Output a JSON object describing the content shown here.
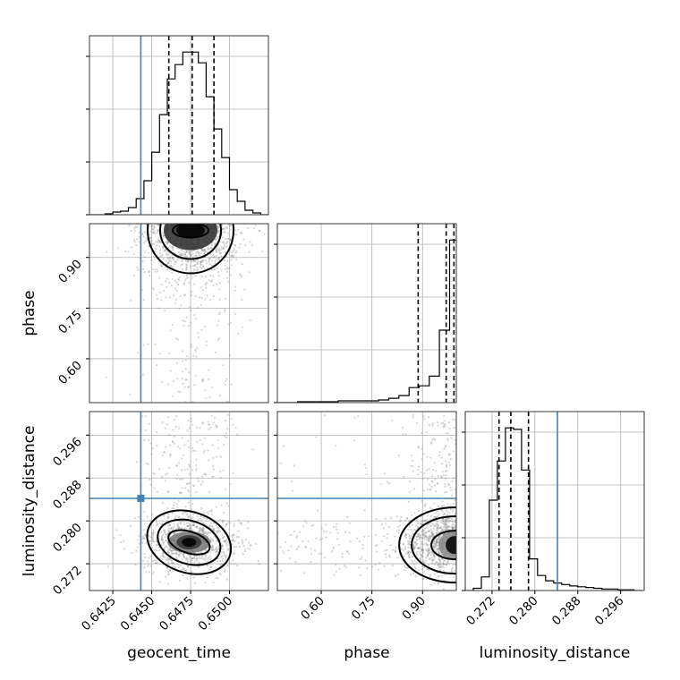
{
  "chart_data": {
    "type": "corner",
    "parameters": [
      "geocent_time",
      "phase",
      "luminosity_distance"
    ],
    "axis_labels": {
      "geocent_time": "geocent_time",
      "phase": "phase",
      "luminosity_distance": "luminosity_distance"
    },
    "ranges": {
      "geocent_time": [
        0.641,
        0.6525
      ],
      "phase": [
        0.47,
        1.0
      ],
      "luminosity_distance": [
        0.267,
        0.3004
      ]
    },
    "ticks": {
      "geocent_time": [
        "0.6425",
        "0.6450",
        "0.6475",
        "0.6500"
      ],
      "phase": [
        "0.60",
        "0.75",
        "0.90"
      ],
      "luminosity_distance": [
        "0.272",
        "0.280",
        "0.288",
        "0.296"
      ]
    },
    "truths": {
      "geocent_time": 0.6443,
      "luminosity_distance": 0.2842
    },
    "quantiles": {
      "geocent_time": [
        0.6461,
        0.6476,
        0.649
      ],
      "phase": [
        0.887,
        0.97,
        0.993
      ],
      "luminosity_distance": [
        0.2733,
        0.2755,
        0.2788
      ]
    },
    "histograms": {
      "geocent_time": {
        "edges": [
          0.641,
          0.6415,
          0.642,
          0.6425,
          0.643,
          0.6435,
          0.644,
          0.6445,
          0.645,
          0.6455,
          0.646,
          0.6465,
          0.647,
          0.6475,
          0.648,
          0.6485,
          0.649,
          0.6495,
          0.65,
          0.6505,
          0.651,
          0.6515,
          0.652,
          0.6525
        ],
        "counts": [
          0,
          0,
          1,
          3,
          4,
          8,
          18,
          38,
          70,
          112,
          152,
          168,
          182,
          182,
          170,
          132,
          96,
          64,
          28,
          15,
          5,
          2,
          0
        ]
      },
      "phase": {
        "edges": [
          0.47,
          0.5,
          0.53,
          0.56,
          0.59,
          0.62,
          0.65,
          0.68,
          0.71,
          0.74,
          0.77,
          0.8,
          0.83,
          0.86,
          0.89,
          0.92,
          0.95,
          0.98,
          1.0
        ],
        "counts": [
          0,
          0,
          1,
          1,
          1,
          1,
          2,
          2,
          2,
          2,
          3,
          5,
          8,
          17,
          19,
          30,
          82,
          184
        ]
      },
      "luminosity_distance": {
        "edges": [
          0.267,
          0.2685,
          0.27,
          0.2715,
          0.273,
          0.2745,
          0.276,
          0.2775,
          0.279,
          0.2805,
          0.282,
          0.2835,
          0.285,
          0.2865,
          0.288,
          0.2895,
          0.291,
          0.2925,
          0.294,
          0.2955,
          0.297,
          0.2985,
          0.3
        ],
        "counts": [
          0,
          3,
          18,
          120,
          172,
          216,
          214,
          160,
          42,
          20,
          13,
          10,
          8,
          6,
          5,
          4,
          3,
          2,
          2,
          1,
          1,
          0
        ]
      }
    },
    "density_peaks": {
      "geocent_time_vs_phase": {
        "x": 0.6475,
        "y": 0.98
      },
      "geocent_time_vs_luminosity_distance": {
        "x": 0.6474,
        "y": 0.276
      },
      "phase_vs_luminosity_distance": {
        "x": 0.995,
        "y": 0.2755
      }
    },
    "grid": true,
    "legend": "none"
  }
}
